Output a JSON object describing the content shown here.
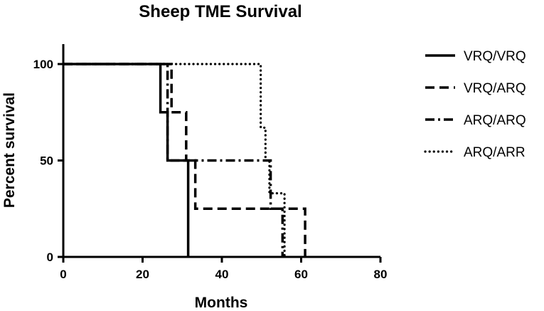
{
  "chart_data": {
    "type": "line",
    "step": true,
    "title": "Sheep TME Survival",
    "xlabel": "Months",
    "ylabel": "Percent survival",
    "xlim": [
      0,
      80
    ],
    "ylim": [
      0,
      100
    ],
    "xticks": [
      0,
      20,
      40,
      60,
      80
    ],
    "yticks": [
      0,
      50,
      100
    ],
    "grid": false,
    "legend_position": "right",
    "series": [
      {
        "name": "VRQ/VRQ",
        "style": "solid",
        "x": [
          0,
          24.5,
          26.3,
          31.5,
          31.5
        ],
        "y": [
          100,
          75,
          50,
          25,
          0
        ]
      },
      {
        "name": "VRQ/ARQ",
        "style": "dashed",
        "x": [
          0,
          27.3,
          31,
          33.3,
          61
        ],
        "y": [
          100,
          75,
          50,
          25,
          0
        ]
      },
      {
        "name": "ARQ/ARQ",
        "style": "dashdot",
        "x": [
          0,
          26.3,
          32.5,
          52.3,
          55.3
        ],
        "y": [
          100,
          50,
          50,
          25,
          0
        ]
      },
      {
        "name": "ARQ/ARR",
        "style": "dotted",
        "x": [
          0,
          49.8,
          51,
          52,
          55.8
        ],
        "y": [
          100,
          67,
          50,
          33,
          0
        ]
      }
    ]
  }
}
